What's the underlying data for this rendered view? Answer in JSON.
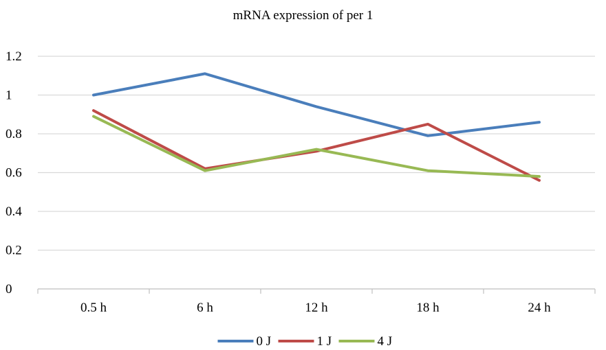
{
  "chart_data": {
    "type": "line",
    "title": "mRNA expression of per 1",
    "xlabel": "",
    "ylabel": "",
    "categories": [
      "0.5 h",
      "6 h",
      "12 h",
      "18 h",
      "24 h"
    ],
    "ylim": [
      0,
      1.2
    ],
    "yticks": [
      0,
      0.2,
      0.4,
      0.6,
      0.8,
      1,
      1.2
    ],
    "ytick_labels": [
      "0",
      "0.2",
      "0.4",
      "0.6",
      "0.8",
      "1",
      "1.2"
    ],
    "grid": true,
    "legend_position": "bottom",
    "series": [
      {
        "name": "0 J",
        "color": "#4a7ebb",
        "values": [
          1.0,
          1.11,
          0.94,
          0.79,
          0.86
        ]
      },
      {
        "name": "1 J",
        "color": "#be4b48",
        "values": [
          0.92,
          0.62,
          0.71,
          0.85,
          0.56
        ]
      },
      {
        "name": "4 J",
        "color": "#98b954",
        "values": [
          0.89,
          0.61,
          0.72,
          0.61,
          0.58
        ]
      }
    ]
  }
}
